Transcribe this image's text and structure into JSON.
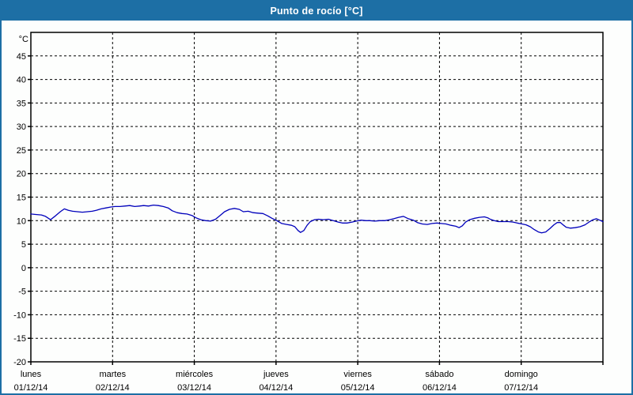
{
  "window": {
    "title": "Punto de rocío [°C]"
  },
  "colors": {
    "titlebar_bg": "#1d6fa5",
    "titlebar_text": "#ffffff",
    "outer_border": "#1d6fa5",
    "background": "#fdfefd",
    "plot_frame": "#000000",
    "gridline": "#000000",
    "series_line": "#0000bb"
  },
  "chart_data": {
    "type": "line",
    "title": "Punto de rocío [°C]",
    "y_unit_label": "°C",
    "ylim": [
      -20,
      50
    ],
    "y_tick_step": 5,
    "y_tick_labels": [
      "45",
      "40",
      "35",
      "30",
      "25",
      "20",
      "15",
      "10",
      "5",
      "0",
      "-5",
      "-10",
      "-15",
      "-20"
    ],
    "y_tick_values": [
      45,
      40,
      35,
      30,
      25,
      20,
      15,
      10,
      5,
      0,
      -5,
      -10,
      -15,
      -20
    ],
    "y_gridline_values": [
      45,
      40,
      35,
      30,
      25,
      20,
      15,
      10,
      5,
      0,
      -5,
      -10,
      -15
    ],
    "xlim_days": [
      0,
      7
    ],
    "x_days": [
      {
        "name": "lunes",
        "date": "01/12/14",
        "day_index": 0
      },
      {
        "name": "martes",
        "date": "02/12/14",
        "day_index": 1
      },
      {
        "name": "miércoles",
        "date": "03/12/14",
        "day_index": 2
      },
      {
        "name": "jueves",
        "date": "04/12/14",
        "day_index": 3
      },
      {
        "name": "viernes",
        "date": "05/12/14",
        "day_index": 4
      },
      {
        "name": "sábado",
        "date": "06/12/14",
        "day_index": 5
      },
      {
        "name": "domingo",
        "date": "07/12/14",
        "day_index": 6
      }
    ],
    "grid": {
      "style": "dashed",
      "horizontal": true,
      "vertical_at_day_boundaries": true
    },
    "legend": "none",
    "series": [
      {
        "name": "Punto de rocío",
        "color": "#0000bb",
        "points": [
          [
            0.0,
            11.4
          ],
          [
            0.06,
            11.3
          ],
          [
            0.13,
            11.2
          ],
          [
            0.18,
            10.9
          ],
          [
            0.24,
            10.2
          ],
          [
            0.3,
            11.0
          ],
          [
            0.36,
            11.9
          ],
          [
            0.41,
            12.5
          ],
          [
            0.46,
            12.2
          ],
          [
            0.51,
            12.0
          ],
          [
            0.57,
            11.9
          ],
          [
            0.63,
            11.8
          ],
          [
            0.69,
            11.9
          ],
          [
            0.75,
            12.0
          ],
          [
            0.8,
            12.2
          ],
          [
            0.86,
            12.5
          ],
          [
            0.92,
            12.7
          ],
          [
            0.98,
            12.9
          ],
          [
            1.03,
            13.0
          ],
          [
            1.09,
            13.0
          ],
          [
            1.15,
            13.1
          ],
          [
            1.21,
            13.2
          ],
          [
            1.27,
            13.0
          ],
          [
            1.33,
            13.1
          ],
          [
            1.38,
            13.2
          ],
          [
            1.44,
            13.1
          ],
          [
            1.5,
            13.3
          ],
          [
            1.56,
            13.2
          ],
          [
            1.62,
            13.0
          ],
          [
            1.68,
            12.7
          ],
          [
            1.73,
            12.1
          ],
          [
            1.79,
            11.7
          ],
          [
            1.85,
            11.5
          ],
          [
            1.91,
            11.4
          ],
          [
            1.97,
            11.1
          ],
          [
            2.02,
            10.6
          ],
          [
            2.08,
            10.2
          ],
          [
            2.14,
            10.0
          ],
          [
            2.2,
            9.9
          ],
          [
            2.26,
            10.3
          ],
          [
            2.31,
            11.0
          ],
          [
            2.37,
            11.9
          ],
          [
            2.43,
            12.4
          ],
          [
            2.49,
            12.6
          ],
          [
            2.55,
            12.4
          ],
          [
            2.6,
            11.9
          ],
          [
            2.66,
            12.0
          ],
          [
            2.72,
            11.7
          ],
          [
            2.78,
            11.6
          ],
          [
            2.84,
            11.5
          ],
          [
            2.9,
            11.0
          ],
          [
            2.95,
            10.5
          ],
          [
            3.01,
            10.0
          ],
          [
            3.07,
            9.4
          ],
          [
            3.13,
            9.2
          ],
          [
            3.19,
            9.0
          ],
          [
            3.23,
            8.7
          ],
          [
            3.27,
            7.9
          ],
          [
            3.3,
            7.5
          ],
          [
            3.34,
            7.9
          ],
          [
            3.38,
            9.0
          ],
          [
            3.42,
            9.8
          ],
          [
            3.47,
            10.2
          ],
          [
            3.52,
            10.3
          ],
          [
            3.58,
            10.2
          ],
          [
            3.64,
            10.3
          ],
          [
            3.7,
            10.0
          ],
          [
            3.76,
            9.7
          ],
          [
            3.81,
            9.5
          ],
          [
            3.87,
            9.5
          ],
          [
            3.93,
            9.7
          ],
          [
            3.98,
            9.9
          ],
          [
            4.04,
            10.1
          ],
          [
            4.1,
            10.0
          ],
          [
            4.15,
            10.0
          ],
          [
            4.21,
            9.9
          ],
          [
            4.27,
            10.0
          ],
          [
            4.33,
            10.0
          ],
          [
            4.39,
            10.2
          ],
          [
            4.44,
            10.4
          ],
          [
            4.5,
            10.7
          ],
          [
            4.56,
            10.9
          ],
          [
            4.62,
            10.4
          ],
          [
            4.68,
            10.1
          ],
          [
            4.73,
            9.6
          ],
          [
            4.79,
            9.3
          ],
          [
            4.85,
            9.2
          ],
          [
            4.91,
            9.4
          ],
          [
            4.97,
            9.5
          ],
          [
            5.02,
            9.4
          ],
          [
            5.08,
            9.3
          ],
          [
            5.14,
            9.0
          ],
          [
            5.2,
            8.8
          ],
          [
            5.24,
            8.5
          ],
          [
            5.28,
            8.9
          ],
          [
            5.32,
            9.7
          ],
          [
            5.37,
            10.2
          ],
          [
            5.43,
            10.5
          ],
          [
            5.49,
            10.7
          ],
          [
            5.55,
            10.8
          ],
          [
            5.59,
            10.6
          ],
          [
            5.62,
            10.3
          ],
          [
            5.67,
            10.0
          ],
          [
            5.72,
            9.8
          ],
          [
            5.78,
            9.8
          ],
          [
            5.84,
            9.8
          ],
          [
            5.9,
            9.7
          ],
          [
            5.95,
            9.5
          ],
          [
            6.01,
            9.3
          ],
          [
            6.06,
            9.1
          ],
          [
            6.11,
            8.7
          ],
          [
            6.16,
            8.1
          ],
          [
            6.21,
            7.6
          ],
          [
            6.25,
            7.4
          ],
          [
            6.3,
            7.6
          ],
          [
            6.35,
            8.3
          ],
          [
            6.4,
            9.1
          ],
          [
            6.44,
            9.6
          ],
          [
            6.48,
            9.6
          ],
          [
            6.52,
            9.0
          ],
          [
            6.55,
            8.6
          ],
          [
            6.6,
            8.4
          ],
          [
            6.66,
            8.5
          ],
          [
            6.72,
            8.7
          ],
          [
            6.78,
            9.1
          ],
          [
            6.83,
            9.7
          ],
          [
            6.88,
            10.2
          ],
          [
            6.92,
            10.4
          ],
          [
            6.96,
            10.1
          ],
          [
            7.0,
            9.8
          ]
        ]
      }
    ]
  }
}
